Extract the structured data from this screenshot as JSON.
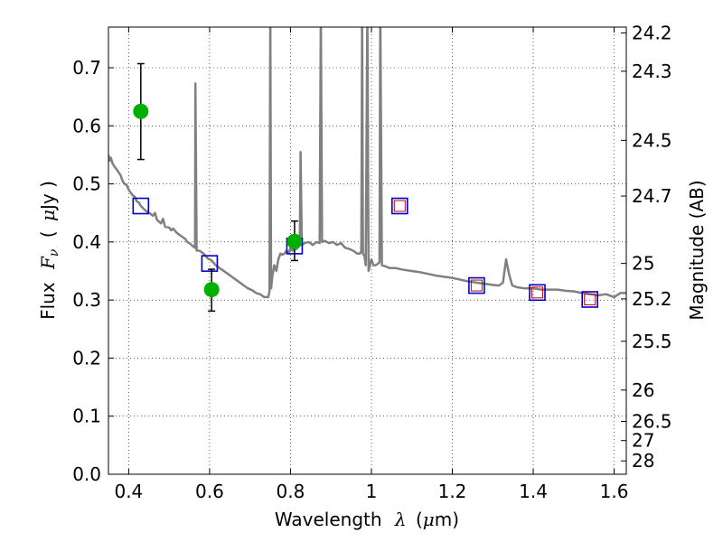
{
  "chart_data": {
    "type": "scatter",
    "xlabel": "Wavelength",
    "xlabel_symbol": "λ",
    "xlabel_unit_open": "(",
    "xlabel_unit_mu": "μ",
    "xlabel_unit_rest": "m)",
    "ylabel": "Flux",
    "ylabel_symbol": "F",
    "ylabel_subscript": "ν",
    "ylabel_unit_open": "(",
    "ylabel_unit_mu": "μ",
    "ylabel_unit_rest": "Jy )",
    "y2label": "Magnitude (AB)",
    "xlim": [
      0.35,
      1.63
    ],
    "ylim": [
      0.0,
      0.77
    ],
    "grid": true,
    "x_ticks": [
      {
        "value": 0.4,
        "label": "0.4"
      },
      {
        "value": 0.6,
        "label": "0.6"
      },
      {
        "value": 0.8,
        "label": "0.8"
      },
      {
        "value": 1.0,
        "label": "1"
      },
      {
        "value": 1.2,
        "label": "1.2"
      },
      {
        "value": 1.4,
        "label": "1.4"
      },
      {
        "value": 1.6,
        "label": "1.6"
      }
    ],
    "y_ticks": [
      {
        "value": 0.0,
        "label": "0.0"
      },
      {
        "value": 0.1,
        "label": "0.1"
      },
      {
        "value": 0.2,
        "label": "0.2"
      },
      {
        "value": 0.3,
        "label": "0.3"
      },
      {
        "value": 0.4,
        "label": "0.4"
      },
      {
        "value": 0.5,
        "label": "0.5"
      },
      {
        "value": 0.6,
        "label": "0.6"
      },
      {
        "value": 0.7,
        "label": "0.7"
      }
    ],
    "magnitude_ticks": [
      {
        "flux": 0.76,
        "label": "24.2"
      },
      {
        "flux": 0.694,
        "label": "24.3"
      },
      {
        "flux": 0.575,
        "label": "24.5"
      },
      {
        "flux": 0.479,
        "label": "24.7"
      },
      {
        "flux": 0.363,
        "label": "25"
      },
      {
        "flux": 0.302,
        "label": "25.2"
      },
      {
        "flux": 0.229,
        "label": "25.5"
      },
      {
        "flux": 0.145,
        "label": "26"
      },
      {
        "flux": 0.091,
        "label": "26.5"
      },
      {
        "flux": 0.058,
        "label": "27"
      },
      {
        "flux": 0.023,
        "label": "28"
      }
    ],
    "series": [
      {
        "name": "model-spectrum",
        "kind": "line",
        "color": "#808080",
        "points": [
          [
            0.35,
            0.55
          ],
          [
            0.353,
            0.54
          ],
          [
            0.356,
            0.545
          ],
          [
            0.36,
            0.535
          ],
          [
            0.365,
            0.53
          ],
          [
            0.37,
            0.525
          ],
          [
            0.375,
            0.52
          ],
          [
            0.38,
            0.515
          ],
          [
            0.385,
            0.505
          ],
          [
            0.39,
            0.5
          ],
          [
            0.395,
            0.498
          ],
          [
            0.4,
            0.49
          ],
          [
            0.405,
            0.485
          ],
          [
            0.41,
            0.48
          ],
          [
            0.415,
            0.478
          ],
          [
            0.42,
            0.47
          ],
          [
            0.425,
            0.468
          ],
          [
            0.43,
            0.462
          ],
          [
            0.44,
            0.455
          ],
          [
            0.45,
            0.45
          ],
          [
            0.455,
            0.448
          ],
          [
            0.46,
            0.445
          ],
          [
            0.465,
            0.45
          ],
          [
            0.47,
            0.438
          ],
          [
            0.48,
            0.432
          ],
          [
            0.485,
            0.44
          ],
          [
            0.49,
            0.426
          ],
          [
            0.5,
            0.425
          ],
          [
            0.505,
            0.42
          ],
          [
            0.51,
            0.423
          ],
          [
            0.52,
            0.415
          ],
          [
            0.53,
            0.41
          ],
          [
            0.54,
            0.405
          ],
          [
            0.545,
            0.4
          ],
          [
            0.55,
            0.398
          ],
          [
            0.555,
            0.395
          ],
          [
            0.56,
            0.392
          ],
          [
            0.564,
            0.39
          ],
          [
            0.565,
            0.673
          ],
          [
            0.568,
            0.385
          ],
          [
            0.575,
            0.385
          ],
          [
            0.585,
            0.38
          ],
          [
            0.595,
            0.372
          ],
          [
            0.605,
            0.368
          ],
          [
            0.615,
            0.36
          ],
          [
            0.625,
            0.355
          ],
          [
            0.635,
            0.35
          ],
          [
            0.645,
            0.345
          ],
          [
            0.655,
            0.34
          ],
          [
            0.665,
            0.335
          ],
          [
            0.675,
            0.33
          ],
          [
            0.685,
            0.325
          ],
          [
            0.695,
            0.32
          ],
          [
            0.705,
            0.317
          ],
          [
            0.715,
            0.312
          ],
          [
            0.725,
            0.31
          ],
          [
            0.735,
            0.305
          ],
          [
            0.745,
            0.305
          ],
          [
            0.748,
            0.315
          ],
          [
            0.75,
            0.8
          ],
          [
            0.752,
            0.32
          ],
          [
            0.755,
            0.34
          ],
          [
            0.76,
            0.36
          ],
          [
            0.765,
            0.35
          ],
          [
            0.77,
            0.37
          ],
          [
            0.775,
            0.38
          ],
          [
            0.78,
            0.378
          ],
          [
            0.785,
            0.38
          ],
          [
            0.79,
            0.385
          ],
          [
            0.795,
            0.38
          ],
          [
            0.8,
            0.39
          ],
          [
            0.805,
            0.385
          ],
          [
            0.81,
            0.39
          ],
          [
            0.815,
            0.388
          ],
          [
            0.82,
            0.392
          ],
          [
            0.823,
            0.395
          ],
          [
            0.825,
            0.555
          ],
          [
            0.828,
            0.395
          ],
          [
            0.835,
            0.398
          ],
          [
            0.845,
            0.4
          ],
          [
            0.855,
            0.395
          ],
          [
            0.865,
            0.4
          ],
          [
            0.872,
            0.398
          ],
          [
            0.875,
            0.8
          ],
          [
            0.878,
            0.4
          ],
          [
            0.885,
            0.402
          ],
          [
            0.895,
            0.398
          ],
          [
            0.905,
            0.4
          ],
          [
            0.915,
            0.395
          ],
          [
            0.925,
            0.398
          ],
          [
            0.935,
            0.39
          ],
          [
            0.945,
            0.388
          ],
          [
            0.955,
            0.385
          ],
          [
            0.965,
            0.38
          ],
          [
            0.972,
            0.38
          ],
          [
            0.975,
            0.385
          ],
          [
            0.977,
            0.8
          ],
          [
            0.979,
            0.38
          ],
          [
            0.983,
            0.375
          ],
          [
            0.986,
            0.36
          ],
          [
            0.99,
            0.8
          ],
          [
            0.993,
            0.35
          ],
          [
            0.996,
            0.36
          ],
          [
            1.0,
            0.37
          ],
          [
            1.005,
            0.36
          ],
          [
            1.01,
            0.36
          ],
          [
            1.015,
            0.362
          ],
          [
            1.02,
            0.365
          ],
          [
            1.022,
            0.8
          ],
          [
            1.026,
            0.36
          ],
          [
            1.035,
            0.358
          ],
          [
            1.045,
            0.355
          ],
          [
            1.06,
            0.355
          ],
          [
            1.08,
            0.352
          ],
          [
            1.1,
            0.35
          ],
          [
            1.12,
            0.348
          ],
          [
            1.14,
            0.345
          ],
          [
            1.16,
            0.342
          ],
          [
            1.18,
            0.34
          ],
          [
            1.2,
            0.338
          ],
          [
            1.22,
            0.335
          ],
          [
            1.24,
            0.332
          ],
          [
            1.26,
            0.33
          ],
          [
            1.28,
            0.328
          ],
          [
            1.3,
            0.326
          ],
          [
            1.315,
            0.325
          ],
          [
            1.325,
            0.33
          ],
          [
            1.333,
            0.37
          ],
          [
            1.34,
            0.345
          ],
          [
            1.348,
            0.325
          ],
          [
            1.36,
            0.322
          ],
          [
            1.38,
            0.32
          ],
          [
            1.4,
            0.32
          ],
          [
            1.42,
            0.318
          ],
          [
            1.44,
            0.318
          ],
          [
            1.46,
            0.318
          ],
          [
            1.48,
            0.316
          ],
          [
            1.5,
            0.315
          ],
          [
            1.52,
            0.312
          ],
          [
            1.54,
            0.31
          ],
          [
            1.56,
            0.308
          ],
          [
            1.58,
            0.31
          ],
          [
            1.6,
            0.305
          ],
          [
            1.615,
            0.312
          ],
          [
            1.63,
            0.312
          ]
        ]
      },
      {
        "name": "model-photometry",
        "kind": "square-open",
        "color": "#0000cc",
        "points": [
          [
            0.43,
            0.462
          ],
          [
            0.6,
            0.363
          ],
          [
            0.81,
            0.393
          ],
          [
            1.07,
            0.462
          ],
          [
            1.26,
            0.325
          ],
          [
            1.41,
            0.313
          ],
          [
            1.54,
            0.301
          ]
        ]
      },
      {
        "name": "observed-red",
        "kind": "square-open-small",
        "color": "#cc0000",
        "points": [
          [
            1.07,
            0.462
          ],
          [
            1.26,
            0.325
          ],
          [
            1.41,
            0.313
          ],
          [
            1.54,
            0.301
          ]
        ]
      },
      {
        "name": "observed-green",
        "kind": "circle-filled",
        "color": "#00b000",
        "points": [
          [
            0.43,
            0.625,
            0.542,
            0.707
          ],
          [
            0.605,
            0.318,
            0.281,
            0.353
          ],
          [
            0.81,
            0.401,
            0.368,
            0.436
          ]
        ]
      }
    ]
  }
}
